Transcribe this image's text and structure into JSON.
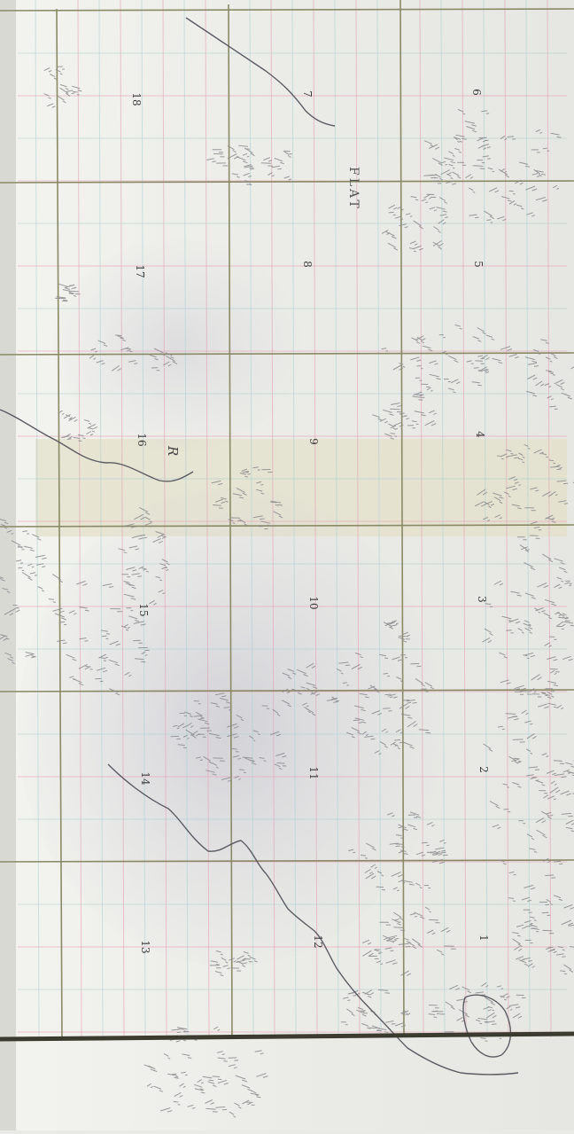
{
  "map": {
    "section_labels": [
      {
        "id": "1",
        "text": "1"
      },
      {
        "id": "2",
        "text": "2"
      },
      {
        "id": "3",
        "text": "3"
      },
      {
        "id": "4",
        "text": "4"
      },
      {
        "id": "5",
        "text": "5"
      },
      {
        "id": "6",
        "text": "6"
      },
      {
        "id": "7",
        "text": "7"
      },
      {
        "id": "8",
        "text": "8"
      },
      {
        "id": "9",
        "text": "9"
      },
      {
        "id": "10",
        "text": "10"
      },
      {
        "id": "11",
        "text": "11"
      },
      {
        "id": "12",
        "text": "12"
      },
      {
        "id": "13",
        "text": "13"
      },
      {
        "id": "14",
        "text": "14"
      },
      {
        "id": "15",
        "text": "15"
      },
      {
        "id": "16",
        "text": "16"
      },
      {
        "id": "17",
        "text": "17"
      },
      {
        "id": "18",
        "text": "18"
      }
    ],
    "place_labels": {
      "flat": "FLAT",
      "river": "R"
    },
    "colors": {
      "paper": "#ecece8",
      "paper_warm": "#e6e3d3",
      "shade": "#cfcfd6",
      "grid_minor_pink": "#e29bb0",
      "grid_minor_blue": "#a9cfd6",
      "grid_major": "#8a8a66",
      "border": "#3b3b30",
      "hachure": "#8a8a8f",
      "river": "#5c5c64",
      "label": "#3a3a3a"
    }
  }
}
